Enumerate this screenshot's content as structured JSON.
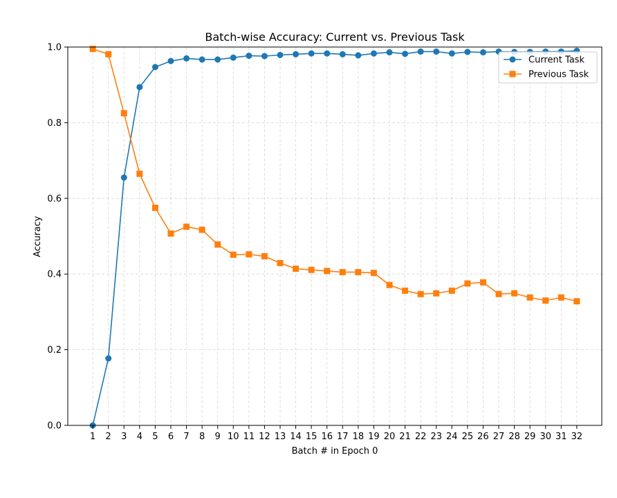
{
  "chart_data": {
    "type": "line",
    "title": "Batch-wise Accuracy: Current vs. Previous Task",
    "xlabel": "Batch # in Epoch 0",
    "ylabel": "Accuracy",
    "x": [
      1,
      2,
      3,
      4,
      5,
      6,
      7,
      8,
      9,
      10,
      11,
      12,
      13,
      14,
      15,
      16,
      17,
      18,
      19,
      20,
      21,
      22,
      23,
      24,
      25,
      26,
      27,
      28,
      29,
      30,
      31,
      32
    ],
    "xlim": [
      -0.6,
      33.6
    ],
    "ylim": [
      0.0,
      1.0
    ],
    "yticks": [
      "0.0",
      "0.2",
      "0.4",
      "0.6",
      "0.8",
      "1.0"
    ],
    "yticks_values": [
      0.0,
      0.2,
      0.4,
      0.6,
      0.8,
      1.0
    ],
    "grid": true,
    "grid_style": "dashed",
    "legend_position": "upper right",
    "series": [
      {
        "name": "Current Task",
        "color": "#1f77b4",
        "marker": "circle",
        "values": [
          0.0,
          0.177,
          0.655,
          0.894,
          0.947,
          0.963,
          0.97,
          0.967,
          0.967,
          0.972,
          0.977,
          0.976,
          0.979,
          0.981,
          0.983,
          0.983,
          0.981,
          0.978,
          0.983,
          0.986,
          0.982,
          0.988,
          0.988,
          0.983,
          0.987,
          0.986,
          0.988,
          0.987,
          0.987,
          0.988,
          0.988,
          0.99
        ]
      },
      {
        "name": "Previous Task",
        "color": "#ff7f0e",
        "marker": "square",
        "values": [
          0.995,
          0.981,
          0.825,
          0.665,
          0.575,
          0.507,
          0.525,
          0.517,
          0.478,
          0.451,
          0.452,
          0.447,
          0.429,
          0.414,
          0.411,
          0.408,
          0.405,
          0.405,
          0.403,
          0.371,
          0.356,
          0.347,
          0.349,
          0.356,
          0.375,
          0.378,
          0.347,
          0.349,
          0.338,
          0.33,
          0.338,
          0.328
        ]
      }
    ]
  }
}
